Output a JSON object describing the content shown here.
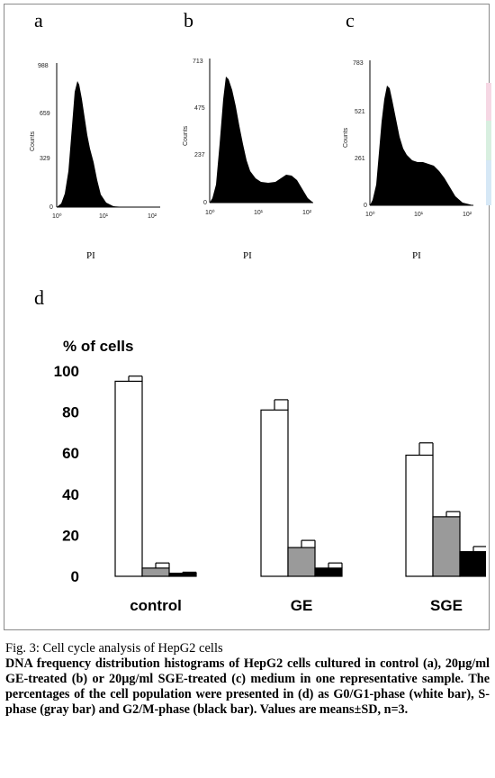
{
  "panels": [
    {
      "letter": "a",
      "ylabel": "Counts",
      "yticks": [
        "988",
        "659",
        "329",
        "0"
      ],
      "xticks": [
        "10⁰",
        "10¹",
        "10²"
      ],
      "xlabel": "PI"
    },
    {
      "letter": "b",
      "ylabel": "Counts",
      "yticks": [
        "713",
        "475",
        "237",
        "0"
      ],
      "xticks": [
        "10⁰",
        "10¹",
        "10²"
      ],
      "xlabel": "PI"
    },
    {
      "letter": "c",
      "ylabel": "Counts",
      "yticks": [
        "783",
        "521",
        "261",
        "0"
      ],
      "xticks": [
        "10⁰",
        "10¹",
        "10²"
      ],
      "xlabel": "PI"
    }
  ],
  "panel_d_letter": "d",
  "chart_data": {
    "type": "bar",
    "ylabel": "% of cells",
    "ylim": [
      0,
      100
    ],
    "yticks": [
      "0",
      "20",
      "40",
      "60",
      "80",
      "100"
    ],
    "categories": [
      "control",
      "GE",
      "SGE"
    ],
    "series": [
      {
        "fill": "#ffffff",
        "values": [
          95,
          81,
          59
        ],
        "errors": [
          2.5,
          5,
          6
        ]
      },
      {
        "fill": "#9a9a9a",
        "values": [
          4,
          14,
          29
        ],
        "errors": [
          2.5,
          3.5,
          2.5
        ]
      },
      {
        "fill": "#000000",
        "values": [
          1.5,
          4,
          12
        ],
        "errors": [
          0.5,
          2.5,
          2.5
        ]
      }
    ],
    "grid": false,
    "legend": "none"
  },
  "caption": {
    "title": "Fig. 3: Cell cycle analysis of HepG2 cells",
    "body": "DNA frequency distribution histograms of HepG2 cells cultured in control (a), 20µg/ml GE-treated (b) or 20µg/ml SGE-treated (c) medium in one representative sample. The percentages of the cell population were presented in (d) as G0/G1-phase (white bar), S-phase (gray bar) and G2/M-phase (black bar). Values are means±SD, n=3."
  },
  "colors": {
    "strip_pink": "#f6d7e4",
    "strip_green": "#d8efe0",
    "strip_blue": "#d6e8f6"
  }
}
